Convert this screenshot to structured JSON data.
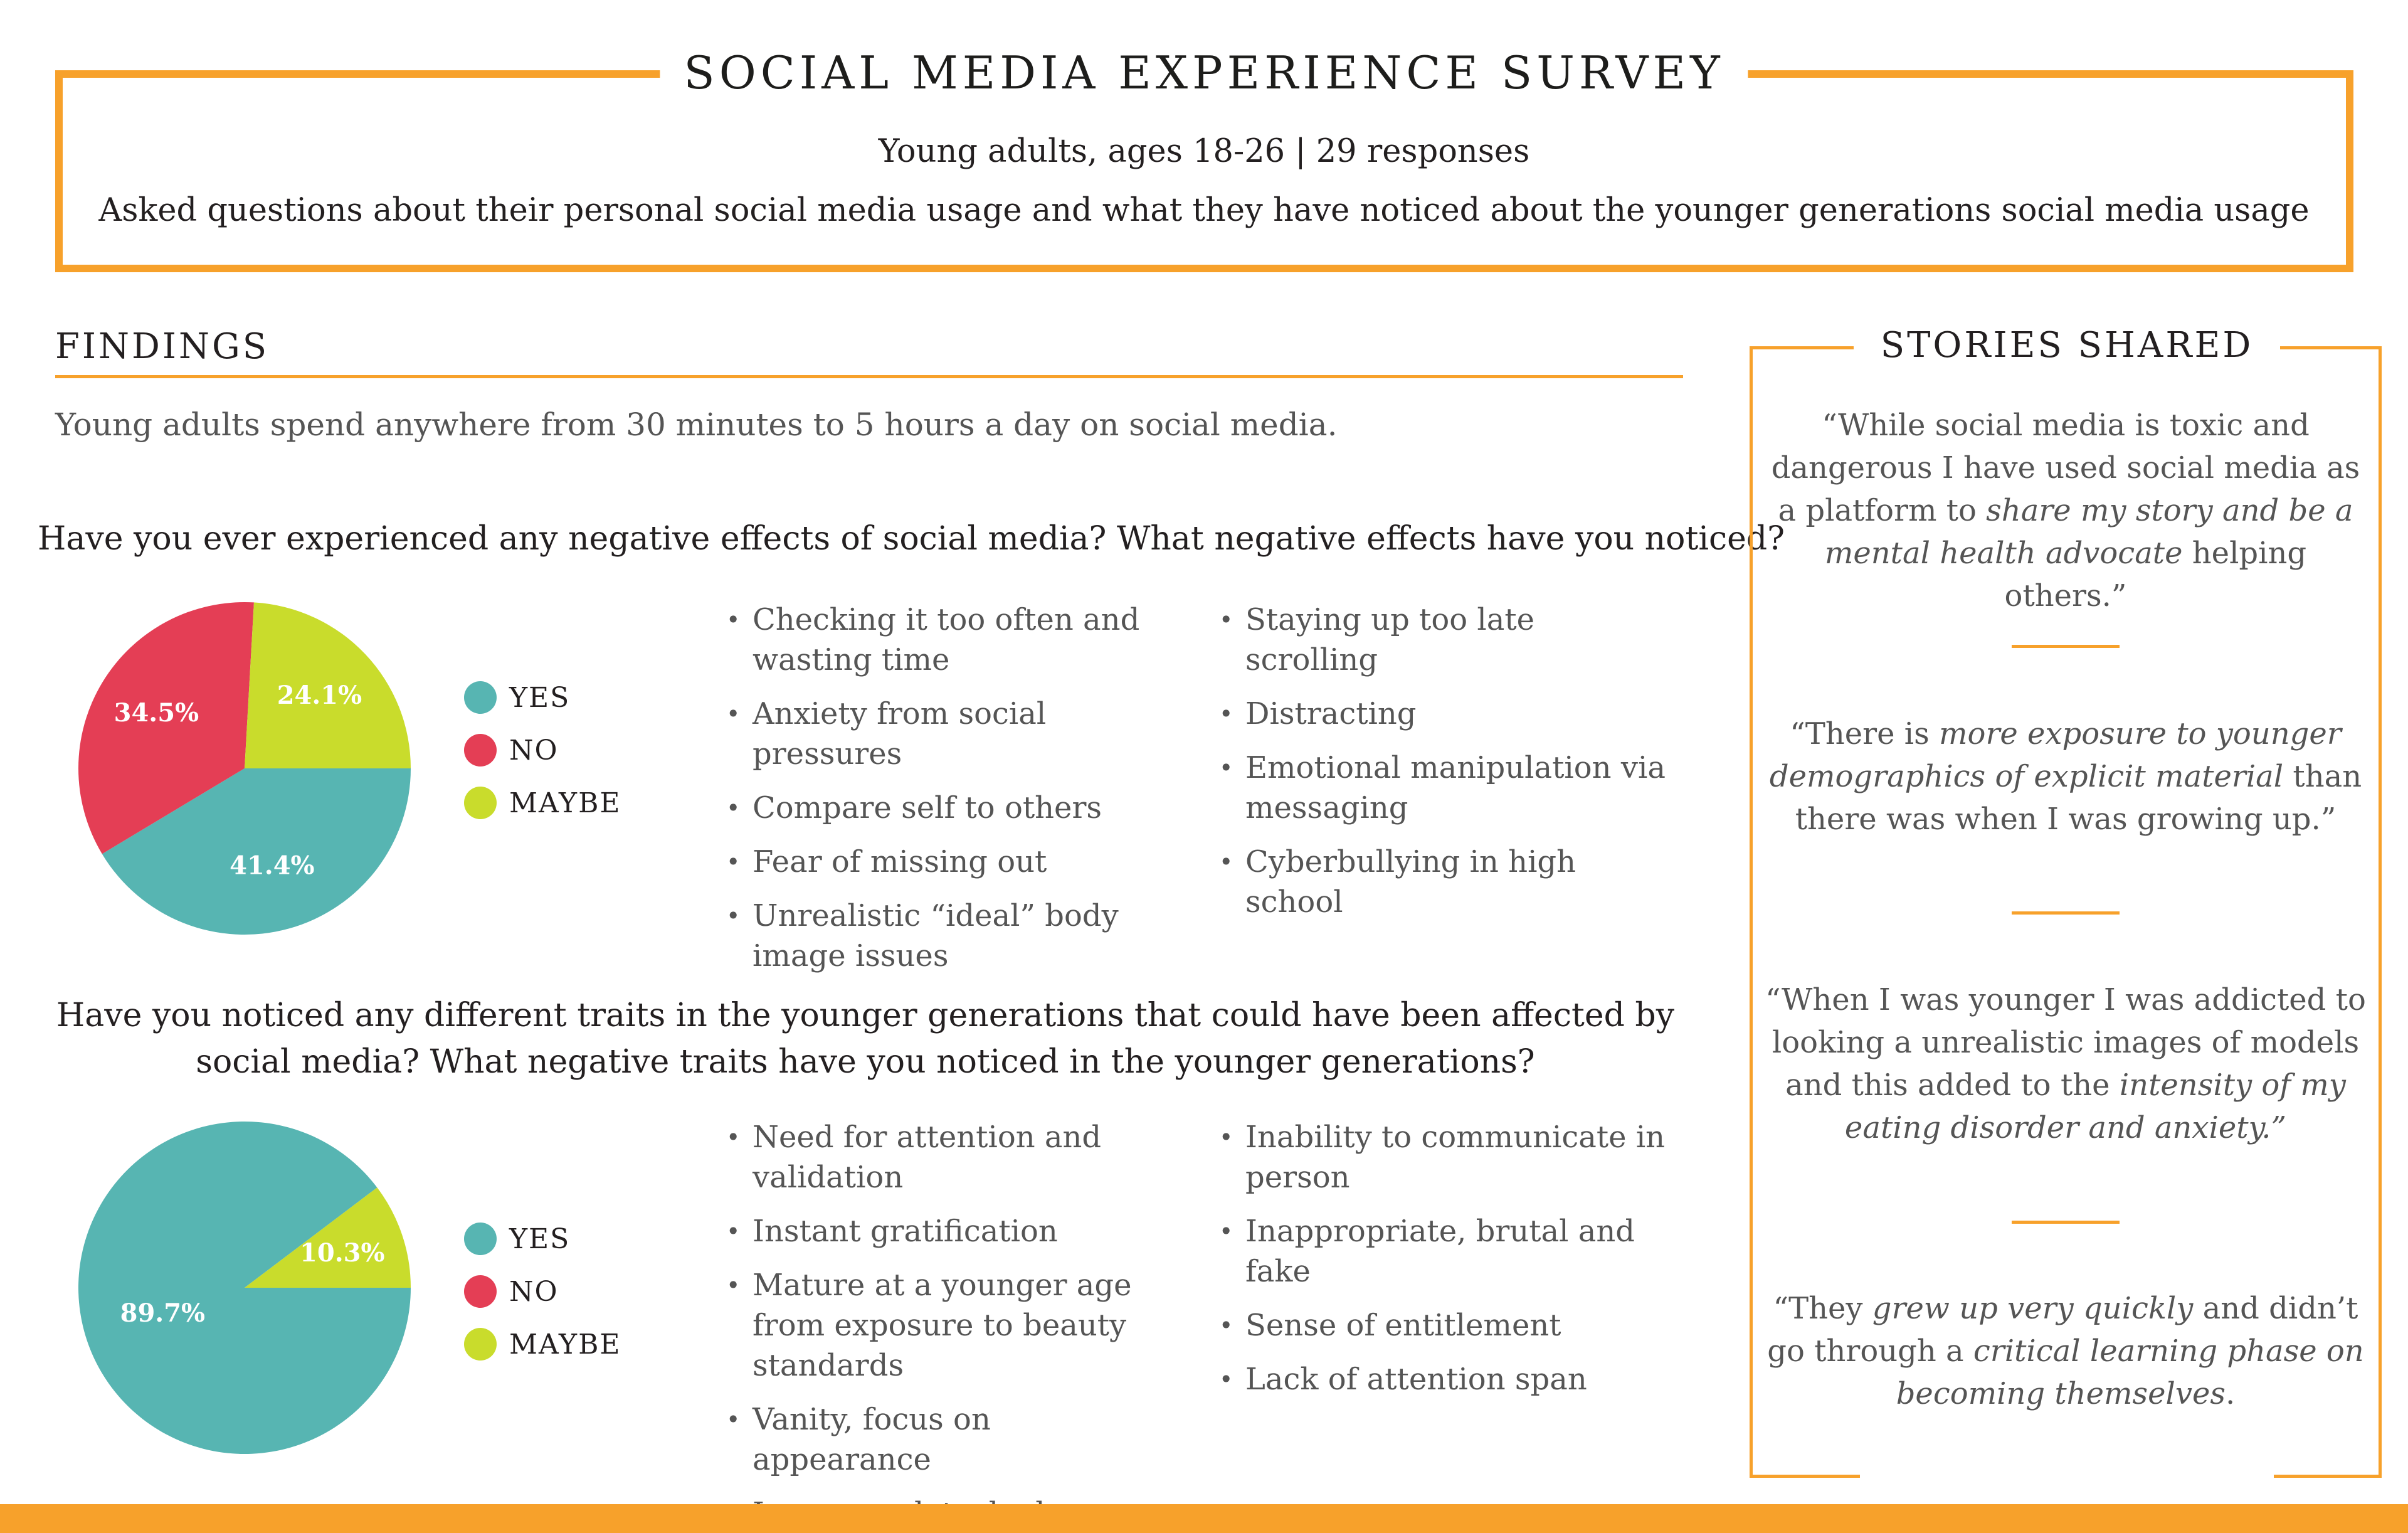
{
  "header": {
    "title": "SOCIAL MEDIA EXPERIENCE SURVEY",
    "subtitle": "Young adults, ages 18-26 | 29 responses",
    "description": "Asked questions about their personal social media usage and what they have noticed about the younger generations social media usage"
  },
  "findings": {
    "heading": "FINDINGS",
    "intro": "Young adults spend anywhere from 30 minutes to 5 hours a day on social media.",
    "q1": {
      "question": "Have you ever experienced any negative effects of social media? What negative effects have you noticed?",
      "effects_left": [
        "Checking it too often and wasting time",
        "Anxiety from social pressures",
        "Compare self to others",
        "Fear of missing out",
        "Unrealistic “ideal” body image issues"
      ],
      "effects_right": [
        "Staying up too late scrolling",
        "Distracting",
        "Emotional manipulation via messaging",
        "Cyberbullying in high school"
      ]
    },
    "q2": {
      "question": "Have you noticed any different traits in the younger generations that could have been affected by social media? What negative traits have you noticed in the younger generations?",
      "traits_left": [
        "Need for attention and validation",
        "Instant gratification",
        "Mature at a younger age from exposure to beauty standards",
        "Vanity, focus on appearance",
        "Insecure, detached"
      ],
      "traits_right": [
        "Inability to communicate in person",
        "Inappropriate, brutal and fake",
        "Sense of entitlement",
        "Lack of attention span"
      ]
    }
  },
  "chart_data": [
    {
      "type": "pie",
      "categories": [
        "YES",
        "NO",
        "MAYBE"
      ],
      "values": [
        41.4,
        34.5,
        24.1
      ],
      "labels": [
        "41.4%",
        "34.5%",
        "24.1%"
      ],
      "colors": [
        "#57b5b2",
        "#e43e55",
        "#c9dc2c"
      ],
      "legend": "right"
    },
    {
      "type": "pie",
      "categories": [
        "YES",
        "NO",
        "MAYBE"
      ],
      "values": [
        89.7,
        0,
        10.3
      ],
      "labels": [
        "89.7%",
        "",
        "10.3%"
      ],
      "colors": [
        "#57b5b2",
        "#e43e55",
        "#c9dc2c"
      ],
      "legend": "right"
    }
  ],
  "stories": {
    "heading": "STORIES SHARED",
    "quotes": [
      [
        {
          "t": "“While social media is toxic and dangerous I have used social media as a platform to ",
          "i": false
        },
        {
          "t": "share my story and be a mental health advocate",
          "i": true
        },
        {
          "t": " helping others.”",
          "i": false
        }
      ],
      [
        {
          "t": "“There is ",
          "i": false
        },
        {
          "t": "more exposure to younger demographics of explicit material",
          "i": true
        },
        {
          "t": " than there was when I was growing up.”",
          "i": false
        }
      ],
      [
        {
          "t": "“When I was younger I was addicted to looking a unrealistic images of models and this added to the ",
          "i": false
        },
        {
          "t": "intensity of my eating disorder and anxiety.”",
          "i": true
        }
      ],
      [
        {
          "t": "“They ",
          "i": false
        },
        {
          "t": "grew up very quickly",
          "i": true
        },
        {
          "t": " and didn’t go through a ",
          "i": false
        },
        {
          "t": "critical learning phase on becoming themselves",
          "i": true
        },
        {
          "t": ".",
          "i": false
        }
      ]
    ]
  },
  "colors": {
    "accent": "#f7a12b",
    "yes": "#57b5b2",
    "no": "#e43e55",
    "maybe": "#c9dc2c"
  }
}
